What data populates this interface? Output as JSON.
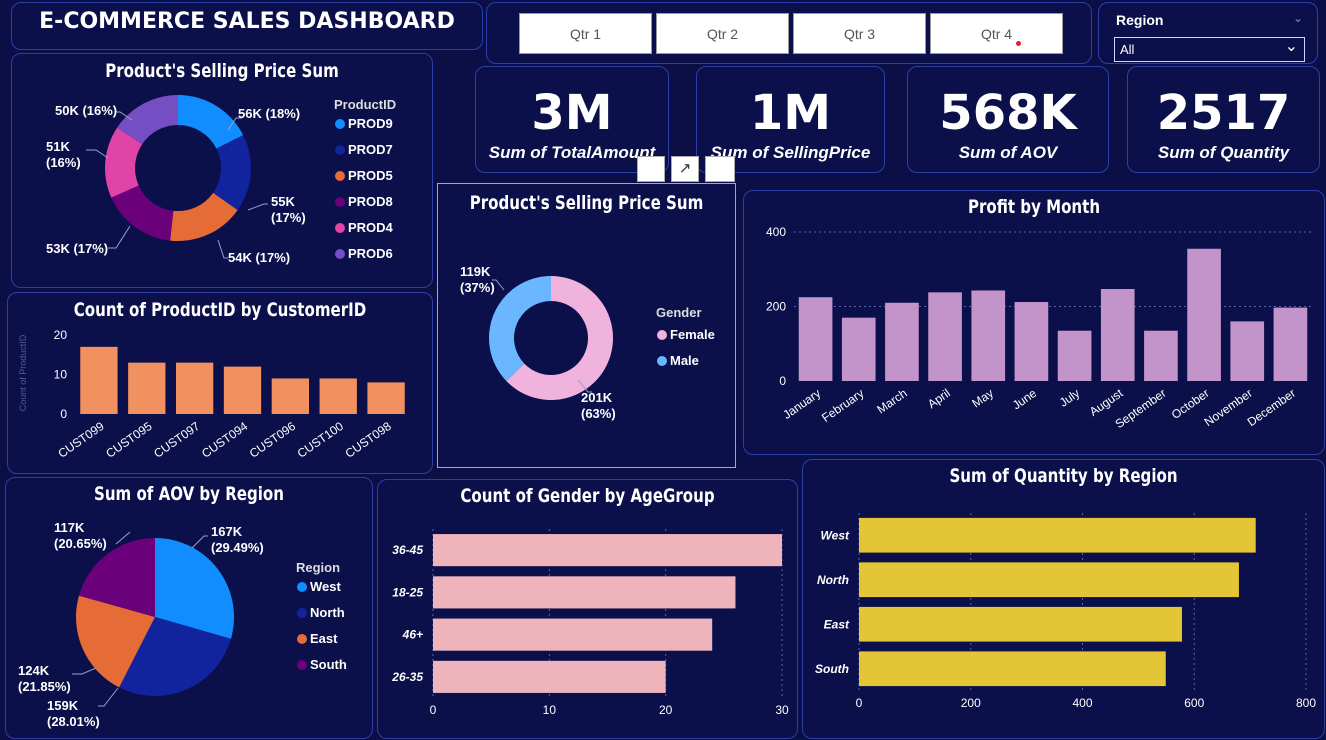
{
  "header": {
    "title": "E-COMMERCE SALES DASHBOARD"
  },
  "quarters": [
    "Qtr 1",
    "Qtr 2",
    "Qtr 3",
    "Qtr 4"
  ],
  "region_filter": {
    "label": "Region",
    "value": "All"
  },
  "kpis": [
    {
      "value": "3M",
      "label": "Sum of TotalAmount"
    },
    {
      "value": "1M",
      "label": "Sum of SellingPrice"
    },
    {
      "value": "568K",
      "label": "Sum of AOV"
    },
    {
      "value": "2517",
      "label": "Sum of Quantity"
    }
  ],
  "colors": {
    "background": "#0b0f45",
    "card": "#0b0f4a",
    "border": "#2b3fa8"
  },
  "chart_data": [
    {
      "id": "product-donut",
      "type": "pie",
      "title": "Product's Selling Price Sum",
      "legend_title": "ProductID",
      "categories": [
        "PROD9",
        "PROD7",
        "PROD5",
        "PROD8",
        "PROD4",
        "PROD6"
      ],
      "values": [
        56,
        55,
        54,
        53,
        51,
        50
      ],
      "labels": [
        "56K (18%)",
        "55K (17%)",
        "54K (17%)",
        "53K (17%)",
        "51K (16%)",
        "50K (16%)"
      ],
      "colors": [
        "#118dff",
        "#12239e",
        "#e66c37",
        "#6b007b",
        "#e044a7",
        "#744ec2"
      ],
      "donut": true
    },
    {
      "id": "customer-bar",
      "type": "bar",
      "title": "Count of ProductID by CustomerID",
      "categories": [
        "CUST099",
        "CUST095",
        "CUST097",
        "CUST094",
        "CUST096",
        "CUST100",
        "CUST098"
      ],
      "values": [
        17,
        13,
        13,
        12,
        9,
        9,
        8
      ],
      "ylabel": "Count of ProductID",
      "yticks": [
        0,
        10,
        20
      ],
      "ylim": [
        0,
        20
      ],
      "color": "#f0915f"
    },
    {
      "id": "gender-donut",
      "type": "pie",
      "title": "Product's Selling Price Sum",
      "legend_title": "Gender",
      "categories": [
        "Female",
        "Male"
      ],
      "values": [
        201,
        119
      ],
      "labels": [
        "201K (63%)",
        "119K (37%)"
      ],
      "colors": [
        "#f0b3de",
        "#6bb7ff"
      ],
      "donut": true
    },
    {
      "id": "profit-month",
      "type": "bar",
      "title": "Profit by Month",
      "categories": [
        "January",
        "February",
        "March",
        "April",
        "May",
        "June",
        "July",
        "August",
        "September",
        "October",
        "November",
        "December"
      ],
      "values": [
        225,
        170,
        210,
        238,
        243,
        212,
        135,
        247,
        135,
        355,
        160,
        197
      ],
      "yticks": [
        0,
        200,
        400
      ],
      "ylim": [
        0,
        400
      ],
      "grid": true,
      "color": "#c294c9"
    },
    {
      "id": "aov-region",
      "type": "pie",
      "title": "Sum of AOV by Region",
      "legend_title": "Region",
      "categories": [
        "West",
        "North",
        "East",
        "South"
      ],
      "values": [
        167,
        159,
        124,
        117
      ],
      "labels": [
        "167K (29.49%)",
        "159K (28.01%)",
        "124K (21.85%)",
        "117K (20.65%)"
      ],
      "colors": [
        "#118dff",
        "#12239e",
        "#e66c37",
        "#6b007b"
      ],
      "donut": false
    },
    {
      "id": "gender-age",
      "type": "bar",
      "orientation": "horizontal",
      "title": "Count of Gender by AgeGroup",
      "categories": [
        "36-45",
        "18-25",
        "46+",
        "26-35"
      ],
      "values": [
        30,
        26,
        24,
        20
      ],
      "xticks": [
        0,
        10,
        20,
        30
      ],
      "xlim": [
        0,
        30
      ],
      "grid": true,
      "color": "#efb4bb"
    },
    {
      "id": "qty-region",
      "type": "bar",
      "orientation": "horizontal",
      "title": "Sum of Quantity by Region",
      "categories": [
        "West",
        "North",
        "East",
        "South"
      ],
      "values": [
        710,
        680,
        578,
        549
      ],
      "xticks": [
        0,
        200,
        400,
        600,
        800
      ],
      "xlim": [
        0,
        800
      ],
      "grid": true,
      "color": "#e3c535"
    }
  ]
}
